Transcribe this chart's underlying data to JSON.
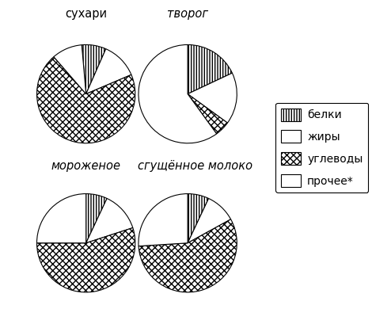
{
  "charts": [
    {
      "title": "сухари",
      "values": [
        8,
        12,
        70,
        10
      ],
      "start_angle": 95
    },
    {
      "title": "творог",
      "values": [
        18,
        17,
        5,
        60
      ],
      "start_angle": 90
    },
    {
      "title": "мороженое",
      "values": [
        7,
        13,
        55,
        25
      ],
      "start_angle": 90
    },
    {
      "title": "сгущённое молоко",
      "values": [
        7,
        10,
        57,
        26
      ],
      "start_angle": 90
    }
  ],
  "legend_labels": [
    "белки",
    "жиры",
    "углеводы",
    "прочее*"
  ],
  "background": "white",
  "title_fontsize": 10.5,
  "legend_fontsize": 10
}
